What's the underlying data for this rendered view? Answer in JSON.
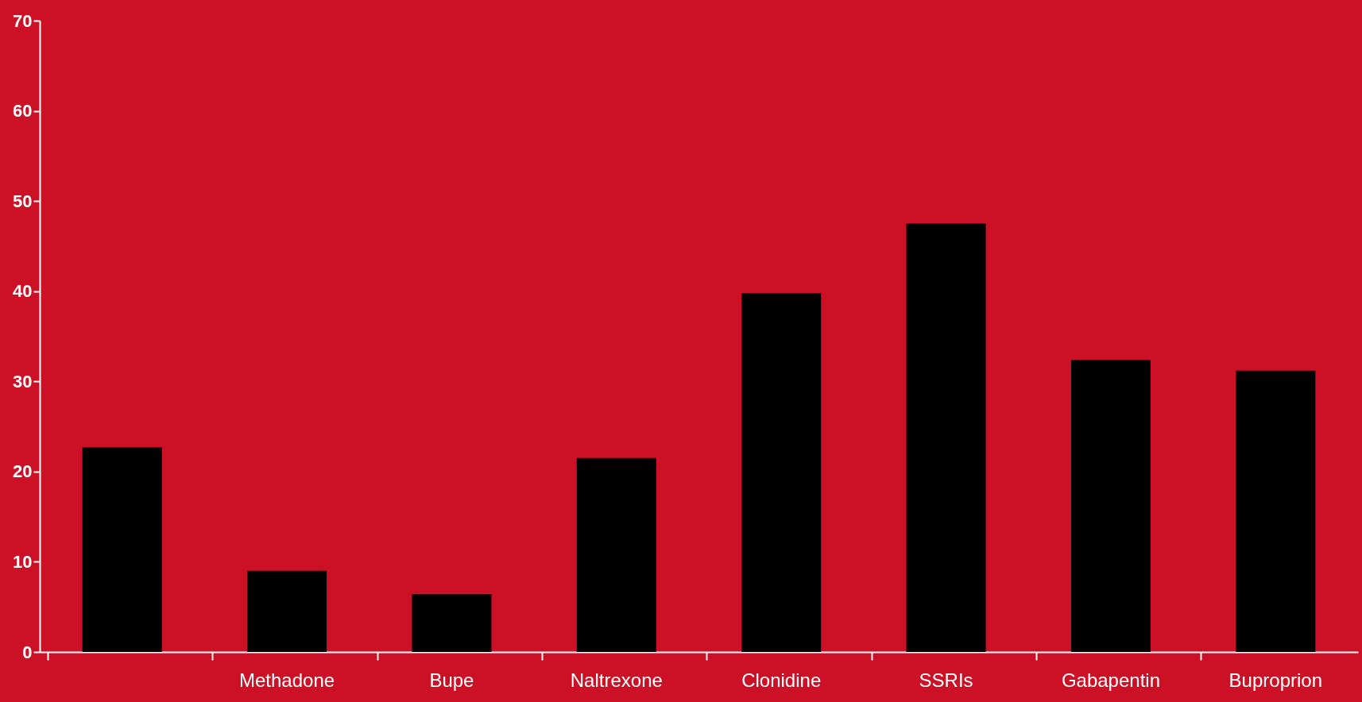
{
  "chart_data": {
    "type": "bar",
    "categories": [
      null,
      "Methadone",
      "Bupe",
      "Naltrexone",
      "Clonidine",
      "SSRIs",
      "Gabapentin",
      "Buproprion"
    ],
    "values": [
      22.7,
      9,
      6.4,
      21.5,
      39.8,
      47.5,
      32.4,
      31.2
    ],
    "color": "#000000",
    "ylim": [
      0,
      70
    ],
    "yticks": [
      0,
      10,
      20,
      30,
      40,
      50,
      60,
      70
    ],
    "grid": false
  }
}
